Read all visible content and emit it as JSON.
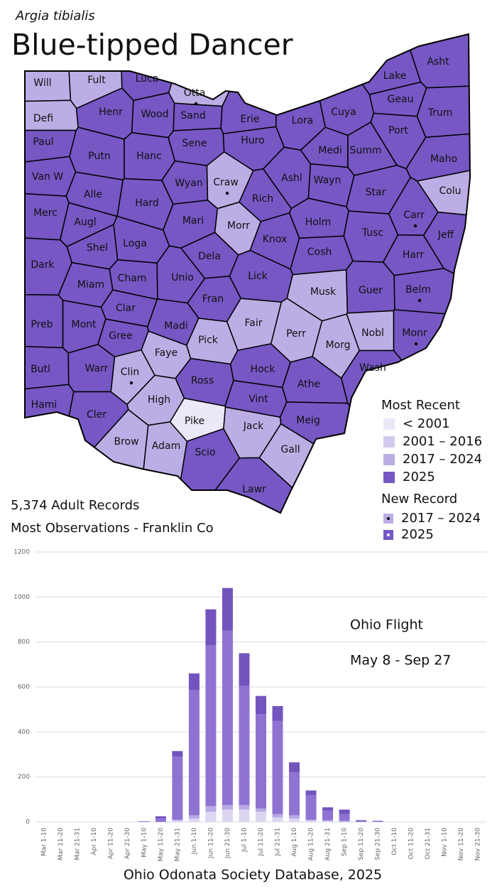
{
  "header": {
    "species": "Argia tibialis",
    "common_name": "Blue-tipped Dancer"
  },
  "map": {
    "counties": [
      {
        "name": "Will",
        "recent": "2017 – 2024"
      },
      {
        "name": "Fult",
        "recent": "2017 – 2024"
      },
      {
        "name": "Luca",
        "recent": "2025"
      },
      {
        "name": "Otta",
        "recent": "2017 – 2024",
        "new_record": "2017 – 2024"
      },
      {
        "name": "Lake",
        "recent": "2025"
      },
      {
        "name": "Asht",
        "recent": "2025"
      },
      {
        "name": "Defi",
        "recent": "2017 – 2024"
      },
      {
        "name": "Henr",
        "recent": "2025"
      },
      {
        "name": "Wood",
        "recent": "2025"
      },
      {
        "name": "Sand",
        "recent": "2025"
      },
      {
        "name": "Erie",
        "recent": "2025"
      },
      {
        "name": "Lora",
        "recent": "2025"
      },
      {
        "name": "Cuya",
        "recent": "2025"
      },
      {
        "name": "Geau",
        "recent": "2025"
      },
      {
        "name": "Trum",
        "recent": "2025"
      },
      {
        "name": "Paul",
        "recent": "2025"
      },
      {
        "name": "Putn",
        "recent": "2025"
      },
      {
        "name": "Hanc",
        "recent": "2025"
      },
      {
        "name": "Sene",
        "recent": "2025"
      },
      {
        "name": "Huro",
        "recent": "2025"
      },
      {
        "name": "Medi",
        "recent": "2025"
      },
      {
        "name": "Summ",
        "recent": "2025"
      },
      {
        "name": "Port",
        "recent": "2025"
      },
      {
        "name": "Maho",
        "recent": "2025"
      },
      {
        "name": "Van W",
        "recent": "2025"
      },
      {
        "name": "Alle",
        "recent": "2025"
      },
      {
        "name": "Wyan",
        "recent": "2025"
      },
      {
        "name": "Craw",
        "recent": "2017 – 2024",
        "new_record": "2017 – 2024"
      },
      {
        "name": "Rich",
        "recent": "2025"
      },
      {
        "name": "Ashl",
        "recent": "2025"
      },
      {
        "name": "Wayn",
        "recent": "2025"
      },
      {
        "name": "Star",
        "recent": "2025"
      },
      {
        "name": "Colu",
        "recent": "2017 – 2024"
      },
      {
        "name": "Merc",
        "recent": "2025"
      },
      {
        "name": "Augl",
        "recent": "2025"
      },
      {
        "name": "Hard",
        "recent": "2025"
      },
      {
        "name": "Mari",
        "recent": "2025"
      },
      {
        "name": "Morr",
        "recent": "2017 – 2024"
      },
      {
        "name": "Holm",
        "recent": "2025"
      },
      {
        "name": "Tusc",
        "recent": "2025"
      },
      {
        "name": "Carr",
        "recent": "2025",
        "new_record": "2017 – 2024"
      },
      {
        "name": "Jeff",
        "recent": "2025"
      },
      {
        "name": "Shel",
        "recent": "2025"
      },
      {
        "name": "Loga",
        "recent": "2025"
      },
      {
        "name": "Dela",
        "recent": "2025"
      },
      {
        "name": "Knox",
        "recent": "2025"
      },
      {
        "name": "Cosh",
        "recent": "2025"
      },
      {
        "name": "Harr",
        "recent": "2025"
      },
      {
        "name": "Dark",
        "recent": "2025"
      },
      {
        "name": "Cham",
        "recent": "2025"
      },
      {
        "name": "Unio",
        "recent": "2025"
      },
      {
        "name": "Lick",
        "recent": "2025"
      },
      {
        "name": "Musk",
        "recent": "2017 – 2024"
      },
      {
        "name": "Guer",
        "recent": "2025"
      },
      {
        "name": "Belm",
        "recent": "2025",
        "new_record": "2017 – 2024"
      },
      {
        "name": "Miam",
        "recent": "2025"
      },
      {
        "name": "Clar",
        "recent": "2025"
      },
      {
        "name": "Fran",
        "recent": "2025"
      },
      {
        "name": "Mont",
        "recent": "2025"
      },
      {
        "name": "Preb",
        "recent": "2025"
      },
      {
        "name": "Madi",
        "recent": "2025"
      },
      {
        "name": "Fair",
        "recent": "2017 – 2024"
      },
      {
        "name": "Perr",
        "recent": "2017 – 2024"
      },
      {
        "name": "Nobl",
        "recent": "2017 – 2024"
      },
      {
        "name": "Monr",
        "recent": "2025",
        "new_record": "2017 – 2024"
      },
      {
        "name": "Gree",
        "recent": "2025"
      },
      {
        "name": "Faye",
        "recent": "2017 – 2024"
      },
      {
        "name": "Pick",
        "recent": "2017 – 2024"
      },
      {
        "name": "Morg",
        "recent": "2017 – 2024"
      },
      {
        "name": "Butl",
        "recent": "2025"
      },
      {
        "name": "Warr",
        "recent": "2025"
      },
      {
        "name": "Clin",
        "recent": "2017 – 2024",
        "new_record": "2017 – 2024"
      },
      {
        "name": "Hock",
        "recent": "2025"
      },
      {
        "name": "Wash",
        "recent": "2025"
      },
      {
        "name": "Ross",
        "recent": "2025"
      },
      {
        "name": "Athe",
        "recent": "2025"
      },
      {
        "name": "High",
        "recent": "2017 – 2024"
      },
      {
        "name": "Vint",
        "recent": "2025"
      },
      {
        "name": "Hami",
        "recent": "2025"
      },
      {
        "name": "Cler",
        "recent": "2025"
      },
      {
        "name": "Brow",
        "recent": "2017 – 2024"
      },
      {
        "name": "Adam",
        "recent": "2017 – 2024"
      },
      {
        "name": "Pike",
        "recent": "< 2001"
      },
      {
        "name": "Jack",
        "recent": "2017 – 2024"
      },
      {
        "name": "Meig",
        "recent": "2025"
      },
      {
        "name": "Gall",
        "recent": "2017 – 2024"
      },
      {
        "name": "Scio",
        "recent": "2025"
      },
      {
        "name": "Lawr",
        "recent": "2025"
      }
    ],
    "legend_recent": {
      "title": "Most Recent",
      "items": [
        {
          "label": "< 2001",
          "color": "#ebe8f8"
        },
        {
          "label": "2001 – 2016",
          "color": "#d3caef"
        },
        {
          "label": "2017 – 2024",
          "color": "#bcaee5"
        },
        {
          "label": "2025",
          "color": "#7657c4"
        }
      ]
    },
    "legend_new": {
      "title": "New Record",
      "items": [
        {
          "label": "2017 – 2024",
          "color": "#bcaee5",
          "dot": "#000000"
        },
        {
          "label": "2025",
          "color": "#7657c4",
          "dot": "#ffffff"
        }
      ]
    }
  },
  "stats": [
    "5,374 Adult Records",
    "Most Observations - Franklin Co"
  ],
  "chart_data": {
    "type": "bar",
    "stacked": true,
    "grid": true,
    "categories": [
      "Mar 1-10",
      "Mar 11-20",
      "Mar 21-31",
      "Apr 1-10",
      "Apr 11-20",
      "Apr 21-30",
      "May 1-10",
      "May 11-20",
      "May 21-31",
      "Jun 1-10",
      "Jun 11-20",
      "Jun 21-30",
      "Jul 1-10",
      "Jul 11-20",
      "Jul 21-31",
      "Aug 1-10",
      "Aug 11-20",
      "Aug 21-31",
      "Sep 1-10",
      "Sep 11-20",
      "Sep 21-30",
      "Oct 1-10",
      "Oct 11-20",
      "Oct 21-31",
      "Nov 1-10",
      "Nov 11-20",
      "Nov 21-30"
    ],
    "series": [
      {
        "color": "#ddd6f3",
        "values": [
          0,
          0,
          0,
          0,
          0,
          0,
          0,
          0,
          5,
          15,
          45,
          55,
          55,
          45,
          20,
          15,
          5,
          3,
          0,
          0,
          0,
          0,
          0,
          0,
          0,
          0,
          0
        ]
      },
      {
        "color": "#b9a9e6",
        "values": [
          0,
          0,
          0,
          0,
          0,
          0,
          0,
          0,
          5,
          15,
          25,
          20,
          20,
          15,
          15,
          15,
          5,
          5,
          5,
          0,
          0,
          0,
          0,
          0,
          0,
          0,
          0
        ]
      },
      {
        "color": "#8f73d2",
        "values": [
          0,
          0,
          0,
          0,
          0,
          0,
          3,
          15,
          280,
          555,
          715,
          775,
          530,
          420,
          415,
          190,
          110,
          42,
          30,
          5,
          3,
          0,
          0,
          0,
          0,
          0,
          0
        ]
      },
      {
        "color": "#7354bf",
        "values": [
          0,
          0,
          0,
          0,
          0,
          0,
          0,
          10,
          25,
          75,
          160,
          190,
          145,
          80,
          65,
          45,
          20,
          15,
          20,
          3,
          2,
          0,
          0,
          0,
          0,
          0,
          0
        ]
      }
    ],
    "ylim": [
      0,
      1200
    ],
    "yticks": [
      0,
      200,
      400,
      600,
      800,
      1000,
      1200
    ],
    "annotations": [
      "Ohio Flight",
      "May 8 - Sep 27"
    ],
    "source": "Ohio Odonata Society Database, 2025"
  }
}
